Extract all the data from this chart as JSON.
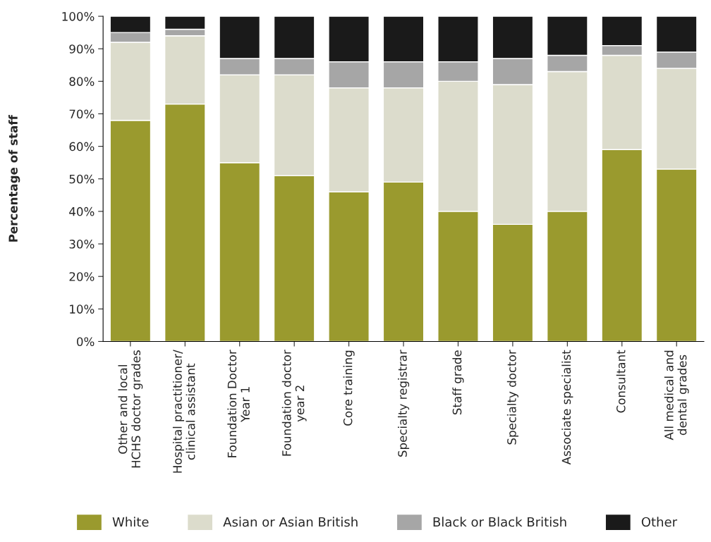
{
  "chart_data": {
    "type": "bar",
    "stacked": true,
    "ylabel": "Percentage of staff",
    "categories": [
      "Other and local\nHCHS doctor grades",
      "Hospital practitioner/\nclinical assistant",
      "Foundation Doctor\nYear 1",
      "Foundation doctor\nyear 2",
      "Core training",
      "Specialty registrar",
      "Staff grade",
      "Specialty doctor",
      "Associate specialist",
      "Consultant",
      "All medical and\ndental grades"
    ],
    "series": [
      {
        "name": "White",
        "color": "#9a9a2e",
        "values": [
          68,
          73,
          55,
          51,
          46,
          49,
          40,
          36,
          40,
          59,
          53
        ]
      },
      {
        "name": "Asian or Asian British",
        "color": "#dcdccc",
        "values": [
          24,
          21,
          27,
          31,
          32,
          29,
          40,
          43,
          43,
          29,
          31
        ]
      },
      {
        "name": "Black or Black British",
        "color": "#a6a6a6",
        "values": [
          3,
          2,
          5,
          5,
          8,
          8,
          6,
          8,
          5,
          3,
          5
        ]
      },
      {
        "name": "Other",
        "color": "#1a1a1a",
        "values": [
          5,
          4,
          13,
          13,
          14,
          14,
          14,
          13,
          12,
          9,
          11
        ]
      }
    ],
    "ylim": [
      0,
      100
    ],
    "yticks": [
      {
        "value": 0,
        "label": "0%"
      },
      {
        "value": 10,
        "label": "10%"
      },
      {
        "value": 20,
        "label": "20%"
      },
      {
        "value": 30,
        "label": "30%"
      },
      {
        "value": 40,
        "label": "40%"
      },
      {
        "value": 50,
        "label": "50%"
      },
      {
        "value": 60,
        "label": "60%"
      },
      {
        "value": 70,
        "label": "70%"
      },
      {
        "value": 80,
        "label": "80%"
      },
      {
        "value": 90,
        "label": "90%"
      },
      {
        "value": 100,
        "label": "100%"
      }
    ],
    "grid": false,
    "legend": "bottom"
  }
}
